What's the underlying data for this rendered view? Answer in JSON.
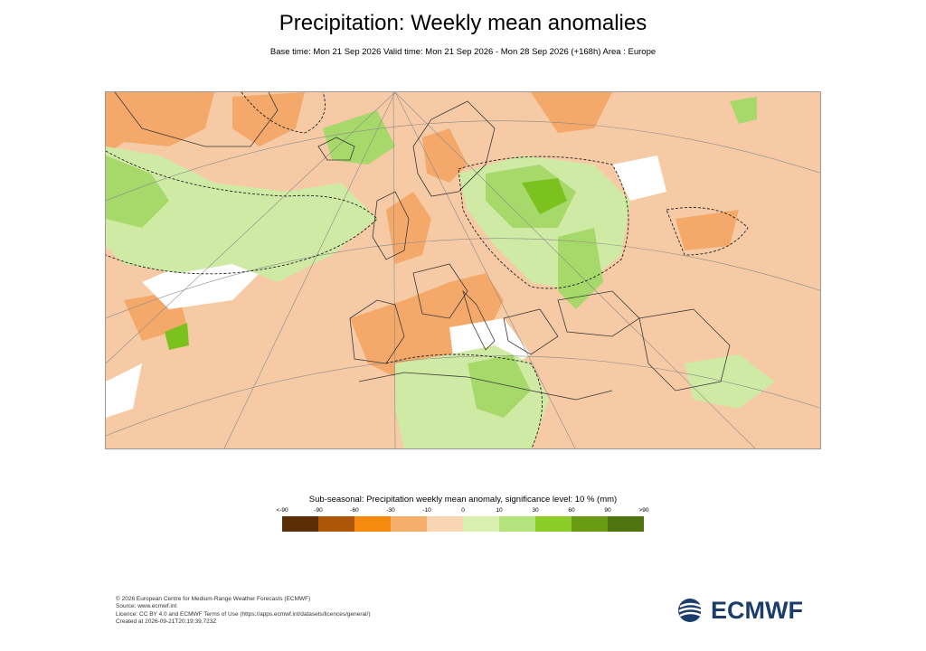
{
  "header": {
    "title": "Precipitation: Weekly mean anomalies",
    "subtitle": "Base time: Mon 21 Sep 2026 Valid time: Mon 21 Sep 2026 - Mon 28 Sep 2026 (+168h) Area : Europe"
  },
  "legend": {
    "title": "Sub-seasonal: Precipitation weekly mean anomaly, significance level: 10 % (mm)",
    "labels": [
      "<-90",
      "-90",
      "-60",
      "-30",
      "-10",
      "0",
      "10",
      "30",
      "60",
      "90",
      ">90"
    ],
    "colors": [
      "#5c2e07",
      "#ad5607",
      "#f58a0f",
      "#f6ae6b",
      "#f9d5b3",
      "#d8efb0",
      "#b4e27c",
      "#8ccc26",
      "#6a9c13",
      "#4f730e"
    ]
  },
  "map": {
    "background_color": "#f6caa4",
    "land_colors": {
      "dry_medium": "#f4a869",
      "wet_light": "#cfeaa4",
      "wet_medium": "#a6d96a",
      "wet_strong": "#7cc21f",
      "neutral": "#ffffff"
    }
  },
  "footer": {
    "lines": [
      "© 2026 European Centre for Medium-Range Weather Forecasts (ECMWF)",
      "Source: www.ecmwf.int",
      "Licence: CC BY 4.0 and ECMWF Terms of Use (https://apps.ecmwf.int/datasets/licences/general/)",
      "Created at 2026-09-21T20:19:39.723Z"
    ]
  },
  "logo": {
    "text": "ECMWF",
    "color": "#1c3d6b",
    "icon": "ecmwf-swirl-icon"
  }
}
